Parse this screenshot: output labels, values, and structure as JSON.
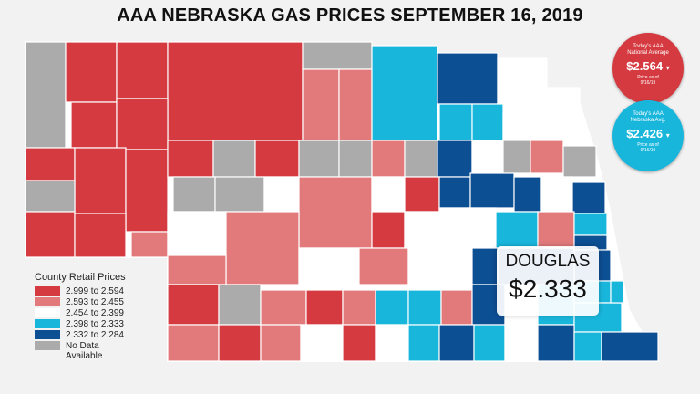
{
  "title": "AAA NEBRASKA GAS PRICES SEPTEMBER 16, 2019",
  "colors": {
    "tier1": "#d43a40",
    "tier2": "#e2797b",
    "tier3": "#ffffff",
    "tier4": "#19b6dc",
    "tier5": "#0d4f93",
    "nodata": "#ababab"
  },
  "national_badge": {
    "caption_line1": "Today's AAA",
    "caption_line2": "National Average",
    "value": "$2.564",
    "price_as_of": "Price as of",
    "date": "9/16/19",
    "color": "#d43a40"
  },
  "nebraska_badge": {
    "caption_line1": "Today's AAA",
    "caption_line2": "Nebraska Avg.",
    "value": "$2.426",
    "price_as_of": "Price as of",
    "date": "9/16/19",
    "color": "#19b6dc"
  },
  "callout": {
    "county": "DOUGLAS",
    "price": "$2.333"
  },
  "legend": {
    "title": "County Retail Prices",
    "items": [
      {
        "label": "2.999 to 2.594",
        "tier": "tier1"
      },
      {
        "label": "2.593 to 2.455",
        "tier": "tier2"
      },
      {
        "label": "2.454 to 2.399",
        "tier": "tier3"
      },
      {
        "label": "2.398 to 2.333",
        "tier": "tier4"
      },
      {
        "label": "2.332 to 2.284",
        "tier": "tier5"
      },
      {
        "label": "No Data Available",
        "tier": "nodata"
      }
    ]
  },
  "counties_by_tier": {
    "tier1": 22,
    "tier2": 22,
    "tier3": 20,
    "tier4": 14,
    "tier5": 16,
    "nodata": 16
  }
}
